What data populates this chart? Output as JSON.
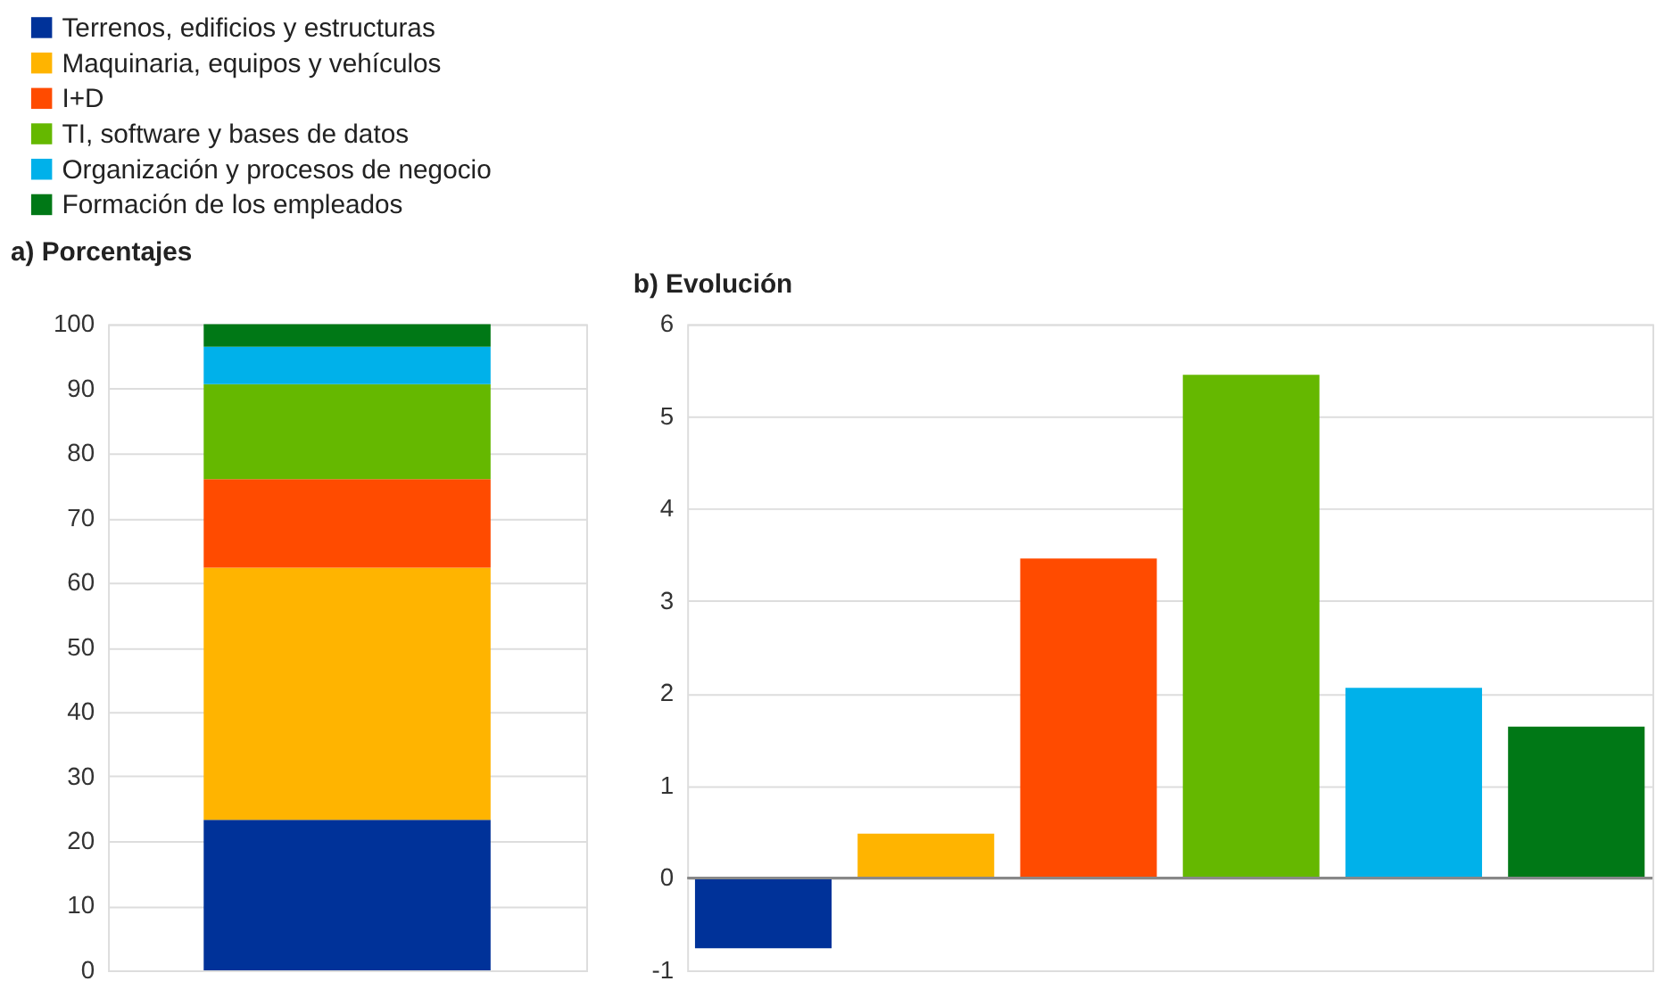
{
  "chart_data": [
    {
      "type": "bar",
      "title": "a) Porcentajes",
      "categories": [
        null
      ],
      "stacked": true,
      "ylim": [
        0,
        100
      ],
      "yticks": [
        0,
        10,
        20,
        30,
        40,
        50,
        60,
        70,
        80,
        90,
        100
      ],
      "grid": "y",
      "legend": "top left",
      "tick_labels": "y",
      "series": [
        {
          "name": "Terrenos, edificios y estructuras",
          "color": "#003299",
          "values": [
            23.3
          ]
        },
        {
          "name": "Maquinaria, equipos y vehículos",
          "color": "#ffb400",
          "values": [
            39.0
          ]
        },
        {
          "name": "I+D",
          "color": "#ff4b00",
          "values": [
            13.7
          ]
        },
        {
          "name": "TI, software y bases de datos",
          "color": "#65b800",
          "values": [
            14.7
          ]
        },
        {
          "name": "Organización y procesos de negocio",
          "color": "#00b1ea",
          "values": [
            5.8
          ]
        },
        {
          "name": "Formación de los empleados",
          "color": "#007816",
          "values": [
            3.5
          ]
        }
      ]
    },
    {
      "type": "bar",
      "title": "b) Evolución",
      "categories": [
        null,
        null,
        null,
        null,
        null,
        null
      ],
      "values": [
        -0.76,
        0.48,
        3.46,
        5.45,
        2.06,
        1.64
      ],
      "colors": [
        "#003299",
        "#ffb400",
        "#ff4b00",
        "#65b800",
        "#00b1ea",
        "#007816"
      ],
      "ylim": [
        -1,
        6
      ],
      "yticks": [
        -1,
        0,
        1,
        2,
        3,
        4,
        5,
        6
      ],
      "grid": "y",
      "tick_labels": "y",
      "ref_lines": [
        {
          "axis": "y",
          "value": 0,
          "color": "#888888"
        }
      ]
    }
  ]
}
